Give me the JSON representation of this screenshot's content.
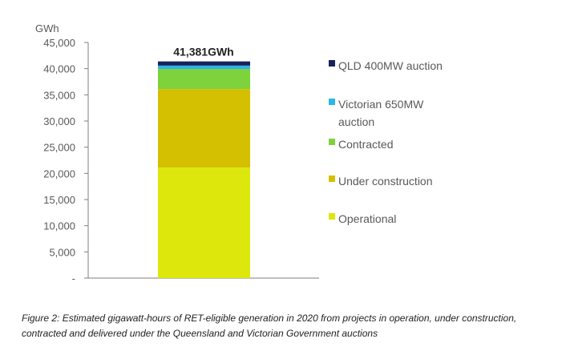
{
  "chart_data": {
    "type": "bar",
    "stacked": true,
    "ylabel": "GWh",
    "ylim": [
      0,
      45000
    ],
    "yticks": [
      0,
      5000,
      10000,
      15000,
      20000,
      25000,
      30000,
      35000,
      40000,
      45000
    ],
    "ytick_labels": [
      "-",
      "5,000",
      "10,000",
      "15,000",
      "20,000",
      "25,000",
      "30,000",
      "35,000",
      "40,000",
      "45,000"
    ],
    "total_label": "41,381GWh",
    "grid": false,
    "legend_position": "right",
    "series": [
      {
        "name": "Operational",
        "value": 21100,
        "color": "#dde70b"
      },
      {
        "name": "Under construction",
        "value": 15000,
        "color": "#d4c000"
      },
      {
        "name": "Contracted",
        "value": 3850,
        "color": "#7ed23b"
      },
      {
        "name": "Victorian 650MW auction",
        "value": 631,
        "color": "#2bb6e8"
      },
      {
        "name": "QLD 400MW auction",
        "value": 800,
        "color": "#17215c"
      }
    ],
    "legend": [
      {
        "lines": [
          "QLD 400MW auction"
        ],
        "color": "#17215c"
      },
      {
        "lines": [
          "Victorian 650MW",
          "auction"
        ],
        "color": "#2bb6e8"
      },
      {
        "lines": [
          "Contracted"
        ],
        "color": "#7ed23b"
      },
      {
        "lines": [
          "Under construction"
        ],
        "color": "#d4c000"
      },
      {
        "lines": [
          "Operational"
        ],
        "color": "#dde70b"
      }
    ]
  },
  "caption": "Figure 2: Estimated gigawatt-hours of RET-eligible generation in 2020 from projects in operation, under construction, contracted and delivered under the Queensland and Victorian Government auctions"
}
